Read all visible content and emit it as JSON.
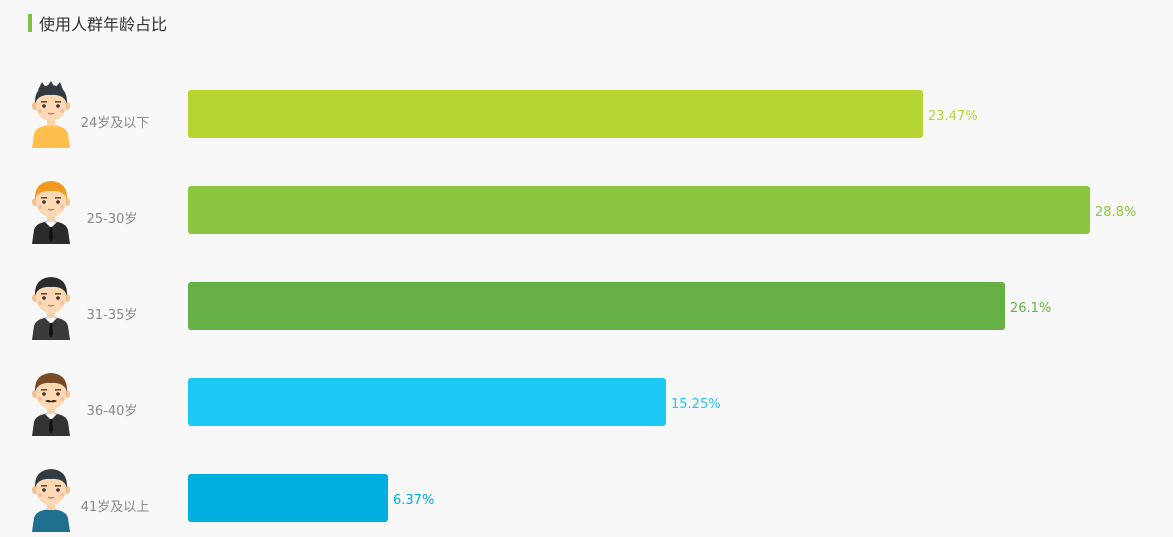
{
  "chart_data": {
    "type": "bar",
    "orientation": "horizontal",
    "title": "使用人群年龄占比",
    "categories": [
      "24岁及以下",
      "25-30岁",
      "31-35岁",
      "36-40岁",
      "41岁及以上"
    ],
    "values": [
      23.47,
      28.8,
      26.1,
      15.25,
      6.37
    ],
    "value_labels": [
      "23.47%",
      "28.8%",
      "26.1%",
      "15.25%",
      "6.37%"
    ],
    "bar_colors": [
      "#b5d531",
      "#8cc63f",
      "#66b045",
      "#1ec8f5",
      "#00aee0"
    ],
    "xlim": [
      0,
      28.8
    ],
    "grid": false,
    "legend": "none"
  },
  "avatars": [
    {
      "icon": "young-man-yellow-shirt-icon",
      "hair": "#333a40",
      "shirt": "#ffbf4d",
      "tie": false
    },
    {
      "icon": "man-orange-hair-suit-icon",
      "hair": "#f39a1e",
      "shirt": "#2b2b2b",
      "tie": true
    },
    {
      "icon": "man-black-hair-suit-icon",
      "hair": "#2c2c2c",
      "shirt": "#3a3a3a",
      "tie": true
    },
    {
      "icon": "man-brown-hair-mustache-icon",
      "hair": "#7b4a26",
      "shirt": "#333333",
      "tie": true,
      "mustache": true
    },
    {
      "icon": "older-man-teal-shirt-icon",
      "hair": "#333a40",
      "shirt": "#1f6f8f",
      "tie": false
    }
  ]
}
